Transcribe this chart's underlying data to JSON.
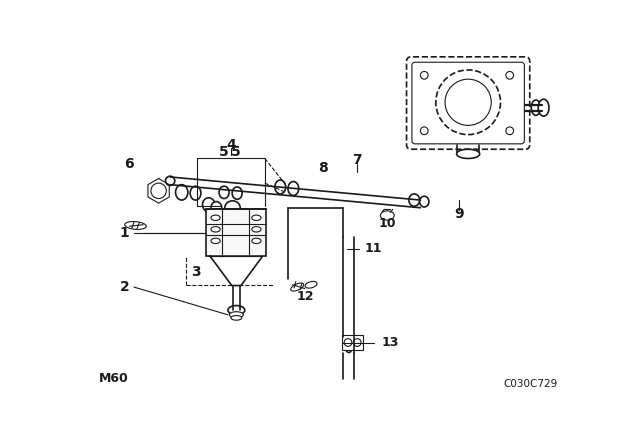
{
  "background_color": "#ffffff",
  "line_color": "#1a1a1a",
  "bottom_left_text": "M60",
  "bottom_right_text": "C030C729",
  "fig_width": 6.4,
  "fig_height": 4.48,
  "dpi": 100
}
